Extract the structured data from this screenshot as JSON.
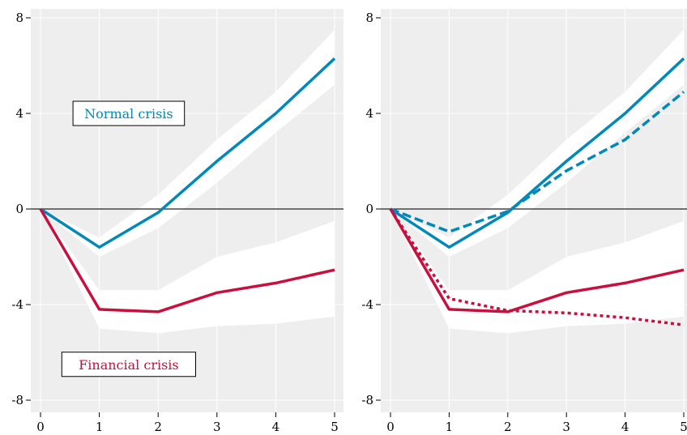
{
  "chart_data": [
    {
      "type": "line",
      "title": "",
      "xlabel": "",
      "ylabel": "",
      "xlim": [
        0,
        5
      ],
      "ylim": [
        -8,
        8
      ],
      "xticks": [
        "0",
        "1",
        "2",
        "3",
        "4",
        "5"
      ],
      "yticks": [
        "-8",
        "-4",
        "0",
        "4",
        "8"
      ],
      "grid": true,
      "reference_line_y": 0,
      "bands": [
        {
          "color": "#ffffff",
          "x": [
            0,
            1,
            2,
            3,
            4,
            5
          ],
          "lower": [
            0,
            -2.0,
            -0.8,
            1.1,
            3.2,
            5.2
          ],
          "upper": [
            0,
            -1.2,
            0.6,
            2.9,
            4.9,
            7.5
          ]
        },
        {
          "color": "#ffffff",
          "x": [
            0,
            1,
            2,
            3,
            4,
            5
          ],
          "lower": [
            0,
            -5.0,
            -5.2,
            -4.9,
            -4.8,
            -4.5
          ],
          "upper": [
            0,
            -3.4,
            -3.4,
            -2.0,
            -1.4,
            -0.5
          ]
        }
      ],
      "series": [
        {
          "name": "",
          "color": "#0088b8",
          "style": "solid",
          "x": [
            0,
            1,
            2,
            3,
            4,
            5
          ],
          "y": [
            0,
            -1.6,
            -0.15,
            2.0,
            4.0,
            6.3
          ]
        },
        {
          "name": "",
          "color": "#c8103e",
          "style": "solid",
          "x": [
            0,
            1,
            2,
            3,
            4,
            5
          ],
          "y": [
            0,
            -4.2,
            -4.3,
            -3.5,
            -3.1,
            -2.55
          ]
        }
      ],
      "annotations": [
        {
          "text": "Normal crisis",
          "color": "#0088b8",
          "x": 1.5,
          "y": 4.0
        },
        {
          "text": "Financial crisis",
          "color": "#c8103e",
          "x": 1.5,
          "y": -6.5
        }
      ]
    },
    {
      "type": "line",
      "title": "",
      "xlabel": "",
      "ylabel": "",
      "xlim": [
        0,
        5
      ],
      "ylim": [
        -8,
        8
      ],
      "xticks": [
        "0",
        "1",
        "2",
        "3",
        "4",
        "5"
      ],
      "yticks": [
        "-8",
        "-4",
        "0",
        "4",
        "8"
      ],
      "grid": true,
      "reference_line_y": 0,
      "bands": [
        {
          "color": "#ffffff",
          "x": [
            0,
            1,
            2,
            3,
            4,
            5
          ],
          "lower": [
            0,
            -2.0,
            -0.8,
            1.1,
            3.2,
            5.2
          ],
          "upper": [
            0,
            -1.2,
            0.6,
            2.9,
            4.9,
            7.5
          ]
        },
        {
          "color": "#ffffff",
          "x": [
            0,
            1,
            2,
            3,
            4,
            5
          ],
          "lower": [
            0,
            -5.0,
            -5.2,
            -4.9,
            -4.8,
            -4.5
          ],
          "upper": [
            0,
            -3.4,
            -3.4,
            -2.0,
            -1.4,
            -0.5
          ]
        }
      ],
      "series": [
        {
          "name": "",
          "color": "#0088b8",
          "style": "solid",
          "x": [
            0,
            1,
            2,
            3,
            4,
            5
          ],
          "y": [
            0,
            -1.6,
            -0.15,
            2.0,
            4.0,
            6.3
          ]
        },
        {
          "name": "",
          "color": "#0088b8",
          "style": "dashed",
          "x": [
            0,
            1,
            2,
            3,
            4,
            5
          ],
          "y": [
            0,
            -0.95,
            -0.1,
            1.6,
            2.9,
            4.9
          ]
        },
        {
          "name": "",
          "color": "#c8103e",
          "style": "solid",
          "x": [
            0,
            1,
            2,
            3,
            4,
            5
          ],
          "y": [
            0,
            -4.2,
            -4.3,
            -3.5,
            -3.1,
            -2.55
          ]
        },
        {
          "name": "",
          "color": "#c8103e",
          "style": "dotted",
          "x": [
            0,
            1,
            2,
            3,
            4,
            5
          ],
          "y": [
            0,
            -3.75,
            -4.25,
            -4.35,
            -4.55,
            -4.85
          ]
        }
      ],
      "annotations": []
    }
  ]
}
